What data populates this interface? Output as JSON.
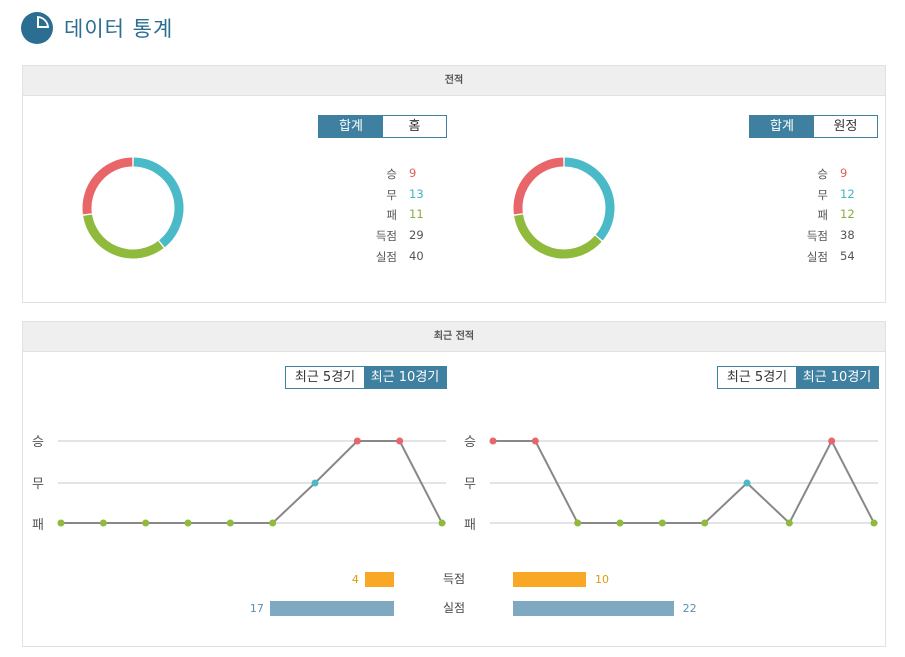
{
  "page": {
    "title": "데이터 통계",
    "logo_icon": "pie-chart-icon"
  },
  "record": {
    "header": "전적",
    "left": {
      "tabs": [
        {
          "label": "합계",
          "active": true
        },
        {
          "label": "홈",
          "active": false
        }
      ],
      "stats": [
        {
          "label": "승",
          "value": "9",
          "color": "#e0605a"
        },
        {
          "label": "무",
          "value": "13",
          "color": "#3eb3c8"
        },
        {
          "label": "패",
          "value": "11",
          "color": "#8aac3c"
        },
        {
          "label": "득점",
          "value": "29",
          "color": "#555555"
        },
        {
          "label": "실점",
          "value": "40",
          "color": "#555555"
        }
      ],
      "donut": [
        {
          "key": "승",
          "value": 9,
          "color": "#e8666a"
        },
        {
          "key": "무",
          "value": 13,
          "color": "#4bbac8"
        },
        {
          "key": "패",
          "value": 11,
          "color": "#8fba3c"
        }
      ]
    },
    "right": {
      "tabs": [
        {
          "label": "합계",
          "active": true
        },
        {
          "label": "원정",
          "active": false
        }
      ],
      "stats": [
        {
          "label": "승",
          "value": "9",
          "color": "#e0605a"
        },
        {
          "label": "무",
          "value": "12",
          "color": "#3eb3c8"
        },
        {
          "label": "패",
          "value": "12",
          "color": "#8aac3c"
        },
        {
          "label": "득점",
          "value": "38",
          "color": "#555555"
        },
        {
          "label": "실점",
          "value": "54",
          "color": "#555555"
        }
      ],
      "donut": [
        {
          "key": "승",
          "value": 9,
          "color": "#e8666a"
        },
        {
          "key": "무",
          "value": 12,
          "color": "#4bbac8"
        },
        {
          "key": "패",
          "value": 12,
          "color": "#8fba3c"
        }
      ]
    }
  },
  "recent": {
    "header": "최근 전적",
    "left": {
      "tabs": [
        {
          "label": "최근 5경기",
          "active": false
        },
        {
          "label": "최근 10경기",
          "active": true
        }
      ],
      "results": [
        "패",
        "패",
        "패",
        "패",
        "패",
        "패",
        "무",
        "승",
        "승",
        "패"
      ]
    },
    "right": {
      "tabs": [
        {
          "label": "최근 5경기",
          "active": false
        },
        {
          "label": "최근 10경기",
          "active": true
        }
      ],
      "results": [
        "승",
        "승",
        "패",
        "패",
        "패",
        "패",
        "무",
        "패",
        "승",
        "패"
      ]
    },
    "y_labels": [
      "승",
      "무",
      "패"
    ],
    "result_colors": {
      "승": "#e8666a",
      "무": "#4bbac8",
      "패": "#8fba3c"
    },
    "bars": [
      {
        "label": "득점",
        "left": 4,
        "right": 10,
        "color": "#f9a825",
        "text_color": "#e09a10"
      },
      {
        "label": "실점",
        "left": 17,
        "right": 22,
        "color": "#7fa9c0",
        "text_color": "#5a8fb0"
      }
    ]
  }
}
